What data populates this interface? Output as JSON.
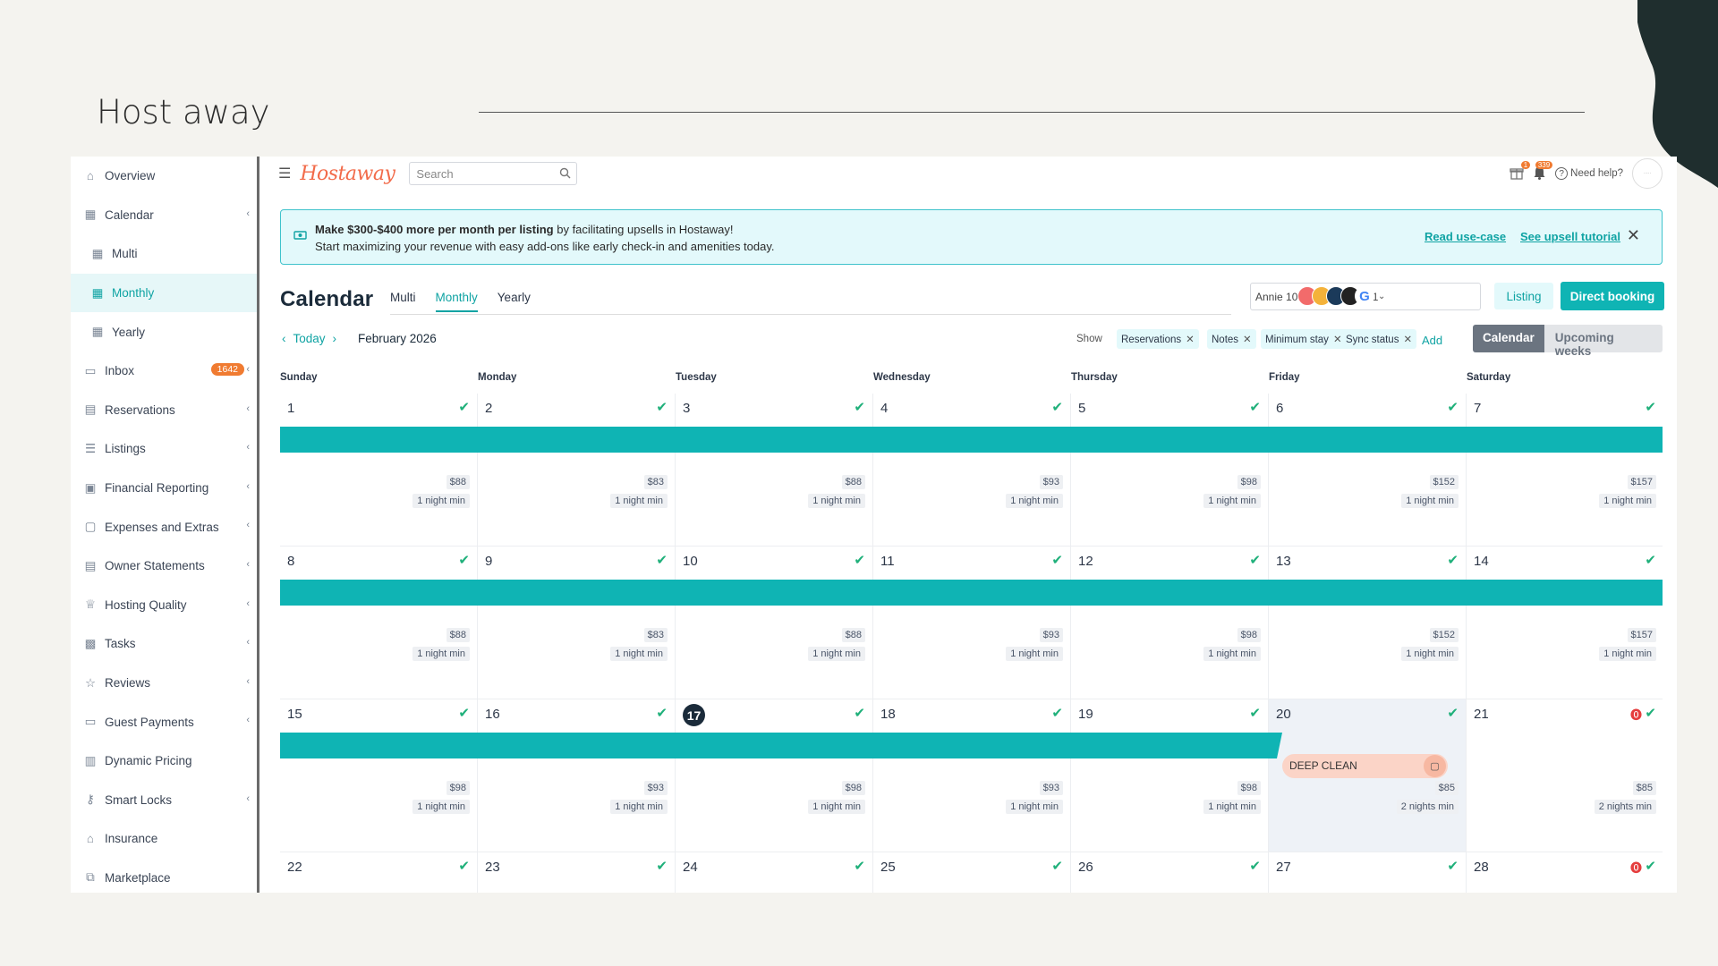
{
  "slide": {
    "title": "Host away"
  },
  "sidebar": {
    "items": [
      {
        "label": "Overview",
        "icon": "home-icon",
        "chevron": false
      },
      {
        "label": "Calendar",
        "icon": "calendar-icon",
        "chevron": true
      },
      {
        "label": "Multi",
        "icon": "calendar-icon",
        "sub": true
      },
      {
        "label": "Monthly",
        "icon": "calendar-icon",
        "sub": true,
        "active": true
      },
      {
        "label": "Yearly",
        "icon": "calendar-icon",
        "sub": true
      },
      {
        "label": "Inbox",
        "icon": "chat-icon",
        "badge": "1642",
        "chevron": true
      },
      {
        "label": "Reservations",
        "icon": "clipboard-icon",
        "chevron": true
      },
      {
        "label": "Listings",
        "icon": "list-icon",
        "chevron": true
      },
      {
        "label": "Financial Reporting",
        "icon": "money-icon",
        "chevron": true
      },
      {
        "label": "Expenses and Extras",
        "icon": "wallet-icon",
        "chevron": true
      },
      {
        "label": "Owner Statements",
        "icon": "statement-icon",
        "chevron": true
      },
      {
        "label": "Hosting Quality",
        "icon": "trophy-icon",
        "chevron": true
      },
      {
        "label": "Tasks",
        "icon": "briefcase-icon",
        "chevron": true
      },
      {
        "label": "Reviews",
        "icon": "star-icon",
        "chevron": true
      },
      {
        "label": "Guest Payments",
        "icon": "card-icon",
        "chevron": true
      },
      {
        "label": "Dynamic Pricing",
        "icon": "bar-chart-icon",
        "chevron": false
      },
      {
        "label": "Smart Locks",
        "icon": "key-icon",
        "chevron": true
      },
      {
        "label": "Insurance",
        "icon": "home-icon",
        "chevron": false
      },
      {
        "label": "Marketplace",
        "icon": "blocks-icon",
        "chevron": false
      }
    ]
  },
  "topbar": {
    "logo": "Hostaway",
    "search_placeholder": "Search",
    "gift_count": "1",
    "bell_count": "339",
    "help": "Need help?"
  },
  "banner": {
    "bold": "Make $300-$400 more per month per listing",
    "rest": " by facilitating upsells in Hostaway!",
    "line2": "Start maximizing your revenue with easy add-ons like early check-in and amenities today.",
    "link1": "Read use-case",
    "link2": "See upsell tutorial"
  },
  "calendar": {
    "title": "Calendar",
    "tabs": [
      "Multi",
      "Monthly",
      "Yearly"
    ],
    "active_tab": "Monthly",
    "listing": "Annie 10 Damson St (471",
    "btn_listing": "Listing",
    "btn_direct": "Direct booking",
    "today": "Today",
    "month": "February 2026",
    "show": "Show",
    "filters": [
      "Reservations",
      "Notes",
      "Minimum stay",
      "Sync status"
    ],
    "add": "Add",
    "view_on": "Calendar",
    "view_off": "Upcoming weeks",
    "days": [
      "Sunday",
      "Monday",
      "Tuesday",
      "Wednesday",
      "Thursday",
      "Friday",
      "Saturday"
    ],
    "today_date": "17",
    "deep_clean": "DEEP CLEAN",
    "weeks": [
      {
        "dates": [
          "1",
          "2",
          "3",
          "4",
          "5",
          "6",
          "7"
        ],
        "prices": [
          "$88",
          "$83",
          "$88",
          "$93",
          "$98",
          "$152",
          "$157"
        ],
        "mins": [
          "1 night min",
          "1 night min",
          "1 night min",
          "1 night min",
          "1 night min",
          "1 night min",
          "1 night min"
        ]
      },
      {
        "dates": [
          "8",
          "9",
          "10",
          "11",
          "12",
          "13",
          "14"
        ],
        "prices": [
          "$88",
          "$83",
          "$88",
          "$93",
          "$98",
          "$152",
          "$157"
        ],
        "mins": [
          "1 night min",
          "1 night min",
          "1 night min",
          "1 night min",
          "1 night min",
          "1 night min",
          "1 night min"
        ]
      },
      {
        "dates": [
          "15",
          "16",
          "17",
          "18",
          "19",
          "20",
          "21"
        ],
        "prices": [
          "$98",
          "$93",
          "$98",
          "$93",
          "$98",
          "$85",
          "$85"
        ],
        "mins": [
          "1 night min",
          "1 night min",
          "1 night min",
          "1 night min",
          "1 night min",
          "2 nights min",
          "2 nights min"
        ]
      },
      {
        "dates": [
          "22",
          "23",
          "24",
          "25",
          "26",
          "27",
          "28"
        ],
        "prices": [],
        "mins": []
      }
    ]
  },
  "colors": {
    "accent": "#0fb4b4",
    "orange": "#f07b31",
    "logo": "#f26b4a",
    "dark": "#1b2b3a"
  }
}
